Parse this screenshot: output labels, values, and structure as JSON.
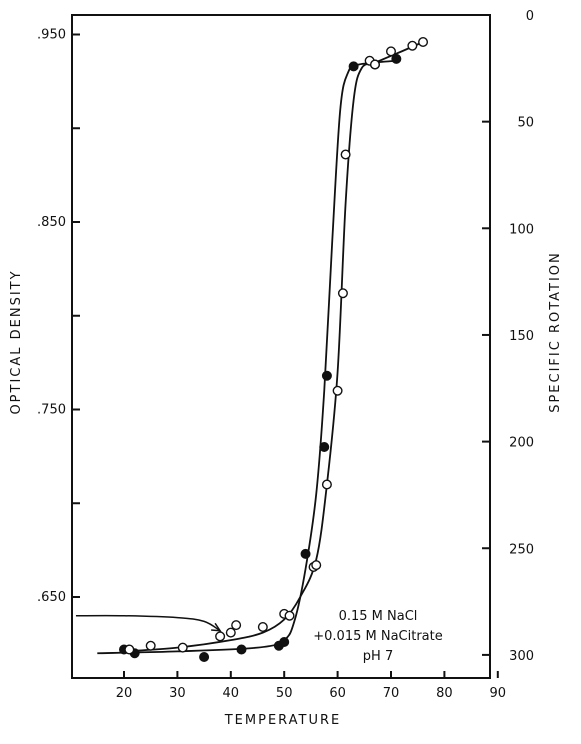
{
  "chart_data": {
    "type": "scatter",
    "xlabel": "TEMPERATURE",
    "ylabel": "OPTICAL DENSITY",
    "y2label": "SPECIFIC ROTATION",
    "xlim": [
      10,
      90
    ],
    "ylim": [
      0.605,
      0.97
    ],
    "y2lim": [
      311,
      0
    ],
    "x_ticks": [
      20,
      30,
      40,
      50,
      60,
      70,
      80,
      90
    ],
    "y_ticks": [
      0.65,
      0.7,
      0.75,
      0.8,
      0.85,
      0.9,
      0.95
    ],
    "y_tick_labels": [
      ".650",
      "",
      ".750",
      "",
      ".850",
      "",
      ".950"
    ],
    "y2_ticks": [
      0,
      50,
      100,
      150,
      200,
      250,
      300
    ],
    "y2_tick_labels": [
      "0",
      "50",
      "100",
      "150",
      "200",
      "250",
      "300"
    ],
    "annotation": [
      "0.15 M NaCl",
      "+0.015 M NaCitrate",
      "pH 7"
    ],
    "colors": {
      "ink": "#111111",
      "background": "#ffffff"
    },
    "series": [
      {
        "marker": "filled-circle",
        "points": [
          [
            20,
            0.622
          ],
          [
            22,
            0.62
          ],
          [
            35,
            0.618
          ],
          [
            42,
            0.622
          ],
          [
            49,
            0.624
          ],
          [
            50,
            0.626
          ],
          [
            54,
            0.673
          ],
          [
            57.5,
            0.73
          ],
          [
            58,
            0.768
          ],
          [
            63,
            0.933
          ],
          [
            67,
            0.934
          ],
          [
            71,
            0.937
          ]
        ],
        "curve": [
          [
            15,
            0.62
          ],
          [
            30,
            0.621
          ],
          [
            45,
            0.623
          ],
          [
            50,
            0.627
          ],
          [
            52,
            0.638
          ],
          [
            54,
            0.665
          ],
          [
            56,
            0.705
          ],
          [
            57.5,
            0.76
          ],
          [
            59,
            0.84
          ],
          [
            60.5,
            0.91
          ],
          [
            62,
            0.93
          ],
          [
            64,
            0.934
          ],
          [
            71,
            0.936
          ]
        ]
      },
      {
        "marker": "open-circle",
        "points": [
          [
            21,
            0.622
          ],
          [
            25,
            0.624
          ],
          [
            31,
            0.623
          ],
          [
            38,
            0.629
          ],
          [
            40,
            0.631
          ],
          [
            41,
            0.635
          ],
          [
            46,
            0.634
          ],
          [
            50,
            0.641
          ],
          [
            51,
            0.64
          ],
          [
            55.5,
            0.666
          ],
          [
            56,
            0.667
          ],
          [
            58,
            0.71
          ],
          [
            60,
            0.76
          ],
          [
            61,
            0.812
          ],
          [
            61.5,
            0.886
          ],
          [
            66,
            0.936
          ],
          [
            67,
            0.934
          ],
          [
            70,
            0.941
          ],
          [
            74,
            0.944
          ],
          [
            76,
            0.946
          ]
        ],
        "curve": [
          [
            20,
            0.621
          ],
          [
            30,
            0.623
          ],
          [
            40,
            0.627
          ],
          [
            46,
            0.631
          ],
          [
            50,
            0.638
          ],
          [
            53,
            0.65
          ],
          [
            56,
            0.67
          ],
          [
            58,
            0.71
          ],
          [
            60,
            0.77
          ],
          [
            61.5,
            0.86
          ],
          [
            63,
            0.915
          ],
          [
            64.5,
            0.932
          ],
          [
            67,
            0.935
          ],
          [
            72,
            0.941
          ],
          [
            76,
            0.946
          ]
        ]
      }
    ],
    "arrow": {
      "path": [
        [
          11,
          0.64
        ],
        [
          20,
          0.64
        ],
        [
          30,
          0.639
        ],
        [
          35,
          0.637
        ],
        [
          38,
          0.632
        ]
      ]
    }
  }
}
